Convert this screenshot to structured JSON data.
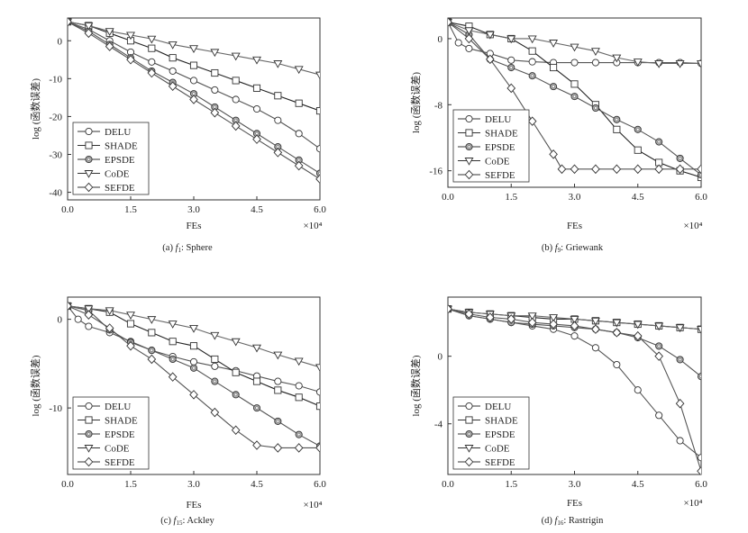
{
  "charts": [
    {
      "caption": {
        "letter": "(a)",
        "fn": "f",
        "sub": "1",
        "name": ": Sphere"
      },
      "chart_data": {
        "type": "line",
        "xlabel": "FEs",
        "ylabel": "log (函数误差)",
        "x_multiplier": "×10⁴",
        "xlim": [
          0,
          6
        ],
        "ylim": [
          -42,
          6
        ],
        "xticks": [
          "0.0",
          "1.5",
          "3.0",
          "4.5",
          "6.0"
        ],
        "yticks": [
          0,
          -10,
          -20,
          -30,
          -40
        ],
        "legend": "bottom-left",
        "series": [
          {
            "name": "DELU",
            "marker": "circle",
            "x": [
              0,
              0.5,
              1.0,
              1.5,
              2.0,
              2.5,
              3.0,
              3.5,
              4.0,
              4.5,
              5.0,
              5.5,
              6.0
            ],
            "y": [
              5,
              3,
              0,
              -3,
              -5.6,
              -8,
              -10.5,
              -13,
              -15.5,
              -18,
              -21,
              -24.5,
              -28.5
            ]
          },
          {
            "name": "SHADE",
            "marker": "square",
            "x": [
              0,
              0.5,
              1.0,
              1.5,
              2.0,
              2.5,
              3.0,
              3.5,
              4.0,
              4.5,
              5.0,
              5.5,
              6.0
            ],
            "y": [
              5,
              4,
              2,
              0,
              -2,
              -4.5,
              -6.5,
              -8.5,
              -10.5,
              -12.5,
              -14.5,
              -16.5,
              -18.5
            ]
          },
          {
            "name": "EPSDE",
            "marker": "circle-dot",
            "x": [
              0,
              0.5,
              1.0,
              1.5,
              2.0,
              2.5,
              3.0,
              3.5,
              4.0,
              4.5,
              5.0,
              5.5,
              6.0
            ],
            "y": [
              5,
              2.5,
              -1,
              -4.5,
              -8,
              -11,
              -14,
              -17.5,
              -21,
              -24.5,
              -28,
              -31.5,
              -35
            ]
          },
          {
            "name": "CoDE",
            "marker": "triangle-down",
            "x": [
              0,
              0.5,
              1.0,
              1.5,
              2.0,
              2.5,
              3.0,
              3.5,
              4.0,
              4.5,
              5.0,
              5.5,
              6.0
            ],
            "y": [
              5,
              4,
              2.5,
              1.5,
              0.5,
              -1,
              -2,
              -3,
              -4,
              -5,
              -6,
              -7.5,
              -9
            ]
          },
          {
            "name": "SEFDE",
            "marker": "diamond",
            "x": [
              0,
              0.5,
              1.0,
              1.5,
              2.0,
              2.5,
              3.0,
              3.5,
              4.0,
              4.5,
              5.0,
              5.5,
              6.0
            ],
            "y": [
              5,
              2,
              -1.5,
              -5,
              -8.5,
              -12,
              -15.5,
              -19,
              -22.5,
              -26,
              -29.5,
              -33,
              -36.5
            ]
          }
        ]
      }
    },
    {
      "caption": {
        "letter": "(b)",
        "fn": "f",
        "sub": "9",
        "name": ": Griewank"
      },
      "chart_data": {
        "type": "line",
        "xlabel": "FEs",
        "ylabel": "log (函数误差)",
        "x_multiplier": "×10⁴",
        "xlim": [
          0,
          6
        ],
        "ylim": [
          -18,
          2.5
        ],
        "xticks": [
          "0.0",
          "1.5",
          "3.0",
          "4.5",
          "6.0"
        ],
        "yticks": [
          0,
          -8,
          -16
        ],
        "legend": "bottom-left",
        "series": [
          {
            "name": "DELU",
            "marker": "circle",
            "x": [
              0,
              0.25,
              0.5,
              1.0,
              1.5,
              2.0,
              2.5,
              3.0,
              3.5,
              4.0,
              4.5,
              5.0,
              5.5,
              6.0
            ],
            "y": [
              2,
              -0.5,
              -1.2,
              -1.8,
              -2.6,
              -2.8,
              -2.9,
              -2.9,
              -2.9,
              -2.9,
              -2.9,
              -2.9,
              -2.9,
              -3.0
            ]
          },
          {
            "name": "SHADE",
            "marker": "square",
            "x": [
              0,
              0.5,
              1.0,
              1.5,
              2.0,
              2.5,
              3.0,
              3.5,
              4.0,
              4.5,
              5.0,
              5.5,
              6.0
            ],
            "y": [
              2,
              1.5,
              0.5,
              0,
              -1.5,
              -3.5,
              -5.5,
              -8,
              -11,
              -13.5,
              -15,
              -16,
              -16.8
            ]
          },
          {
            "name": "EPSDE",
            "marker": "circle-dot",
            "x": [
              0,
              0.5,
              1.0,
              1.5,
              2.0,
              2.5,
              3.0,
              3.5,
              4.0,
              4.5,
              5.0,
              5.5,
              6.0
            ],
            "y": [
              2,
              0.5,
              -2.5,
              -3.5,
              -4.5,
              -5.8,
              -7,
              -8.4,
              -9.8,
              -11,
              -12.5,
              -14.5,
              -16.5
            ]
          },
          {
            "name": "CoDE",
            "marker": "triangle-down",
            "x": [
              0,
              0.5,
              1.0,
              1.5,
              2.0,
              2.5,
              3.0,
              3.5,
              4.0,
              4.5,
              5.0,
              5.5,
              6.0
            ],
            "y": [
              2,
              1,
              0.5,
              0,
              0,
              -0.5,
              -1,
              -1.5,
              -2.3,
              -2.8,
              -3,
              -3,
              -3
            ]
          },
          {
            "name": "SEFDE",
            "marker": "diamond",
            "x": [
              0,
              0.5,
              1.0,
              1.5,
              2.0,
              2.5,
              2.7,
              3.0,
              3.5,
              4.0,
              4.5,
              5.0,
              5.5,
              6.0
            ],
            "y": [
              2,
              0,
              -2.5,
              -6,
              -10,
              -14,
              -15.8,
              -15.8,
              -15.8,
              -15.8,
              -15.8,
              -15.8,
              -15.8,
              -15.8
            ]
          }
        ]
      }
    },
    {
      "caption": {
        "letter": "(c)",
        "fn": "f",
        "sub": "15",
        "name": ": Ackley"
      },
      "chart_data": {
        "type": "line",
        "xlabel": "FEs",
        "ylabel": "log (函数误差)",
        "x_multiplier": "×10⁴",
        "xlim": [
          0,
          6
        ],
        "ylim": [
          -17.5,
          2.5
        ],
        "xticks": [
          "0.0",
          "1.5",
          "3.0",
          "4.5",
          "6.0"
        ],
        "yticks": [
          0,
          -10
        ],
        "legend": "bottom-left",
        "series": [
          {
            "name": "DELU",
            "marker": "circle",
            "x": [
              0,
              0.25,
              0.5,
              1.0,
              1.5,
              2.0,
              2.5,
              3.0,
              3.5,
              4.0,
              4.5,
              5.0,
              5.5,
              6.0
            ],
            "y": [
              1.5,
              0,
              -0.8,
              -1.5,
              -2.5,
              -3.5,
              -4.2,
              -4.8,
              -5.3,
              -5.8,
              -6.4,
              -7,
              -7.5,
              -8.2
            ]
          },
          {
            "name": "SHADE",
            "marker": "square",
            "x": [
              0,
              0.5,
              1.0,
              1.5,
              2.0,
              2.5,
              3.0,
              3.5,
              4.0,
              4.5,
              5.0,
              5.5,
              6.0
            ],
            "y": [
              1.5,
              1.2,
              0.8,
              -0.5,
              -1.5,
              -2.5,
              -3,
              -4.5,
              -6,
              -7,
              -8,
              -8.8,
              -9.8
            ]
          },
          {
            "name": "EPSDE",
            "marker": "circle-dot",
            "x": [
              0,
              0.5,
              1.0,
              1.5,
              2.0,
              2.5,
              3.0,
              3.5,
              4.0,
              4.5,
              5.0,
              5.5,
              6.0
            ],
            "y": [
              1.5,
              1,
              -1.2,
              -2.6,
              -3.5,
              -4.5,
              -5.5,
              -7,
              -8.5,
              -10,
              -11.5,
              -13,
              -14.3
            ]
          },
          {
            "name": "CoDE",
            "marker": "triangle-down",
            "x": [
              0,
              0.5,
              1.0,
              1.5,
              2.0,
              2.5,
              3.0,
              3.5,
              4.0,
              4.5,
              5.0,
              5.5,
              6.0
            ],
            "y": [
              1.5,
              1.2,
              1,
              0.5,
              0,
              -0.5,
              -1,
              -1.8,
              -2.5,
              -3.2,
              -4,
              -4.7,
              -5.4
            ]
          },
          {
            "name": "SEFDE",
            "marker": "diamond",
            "x": [
              0,
              0.5,
              1.0,
              1.5,
              2.0,
              2.5,
              3.0,
              3.5,
              4.0,
              4.5,
              5.0,
              5.5,
              6.0
            ],
            "y": [
              1.5,
              0.5,
              -1,
              -3,
              -4.5,
              -6.5,
              -8.5,
              -10.5,
              -12.5,
              -14.2,
              -14.5,
              -14.5,
              -14.5
            ]
          }
        ]
      }
    },
    {
      "caption": {
        "letter": "(d)",
        "fn": "f",
        "sub": "16",
        "name": ": Rastrigin"
      },
      "chart_data": {
        "type": "line",
        "xlabel": "FEs",
        "ylabel": "log (函数误差)",
        "x_multiplier": "×10⁴",
        "xlim": [
          0,
          6
        ],
        "ylim": [
          -7,
          3.5
        ],
        "xticks": [
          "0.0",
          "1.5",
          "3.0",
          "4.5",
          "6.0"
        ],
        "yticks": [
          0,
          -4
        ],
        "legend": "bottom-left",
        "series": [
          {
            "name": "DELU",
            "marker": "circle",
            "x": [
              0,
              0.5,
              1.0,
              1.5,
              2.0,
              2.5,
              3.0,
              3.5,
              4.0,
              4.5,
              5.0,
              5.5,
              6.0
            ],
            "y": [
              2.8,
              2.4,
              2.2,
              2.0,
              1.8,
              1.6,
              1.2,
              0.5,
              -0.5,
              -2,
              -3.5,
              -5,
              -6
            ]
          },
          {
            "name": "SHADE",
            "marker": "square",
            "x": [
              0,
              0.5,
              1.0,
              1.5,
              2.0,
              2.5,
              3.0,
              3.5,
              4.0,
              4.5,
              5.0,
              5.5,
              6.0
            ],
            "y": [
              2.8,
              2.6,
              2.5,
              2.4,
              2.3,
              2.2,
              2.2,
              2.1,
              2.0,
              1.9,
              1.8,
              1.7,
              1.6
            ]
          },
          {
            "name": "EPSDE",
            "marker": "circle-dot",
            "x": [
              0,
              0.5,
              1.0,
              1.5,
              2.0,
              2.5,
              3.0,
              3.5,
              4.0,
              4.5,
              5.0,
              5.5,
              6.0
            ],
            "y": [
              2.8,
              2.4,
              2.2,
              2.0,
              1.9,
              1.8,
              1.7,
              1.6,
              1.4,
              1.1,
              0.6,
              -0.2,
              -1.2
            ]
          },
          {
            "name": "CoDE",
            "marker": "triangle-down",
            "x": [
              0,
              0.5,
              1.0,
              1.5,
              2.0,
              2.5,
              3.0,
              3.5,
              4.0,
              4.5,
              5.0,
              5.5,
              6.0
            ],
            "y": [
              2.8,
              2.6,
              2.5,
              2.4,
              2.4,
              2.3,
              2.2,
              2.1,
              2.0,
              1.9,
              1.8,
              1.7,
              1.6
            ]
          },
          {
            "name": "SEFDE",
            "marker": "diamond",
            "x": [
              0,
              0.5,
              1.0,
              1.5,
              2.0,
              2.5,
              3.0,
              3.5,
              4.0,
              4.5,
              5.0,
              5.5,
              6.0
            ],
            "y": [
              2.8,
              2.5,
              2.3,
              2.2,
              2.0,
              1.9,
              1.8,
              1.6,
              1.4,
              1.2,
              0.0,
              -2.8,
              -6.8
            ]
          }
        ]
      }
    }
  ]
}
